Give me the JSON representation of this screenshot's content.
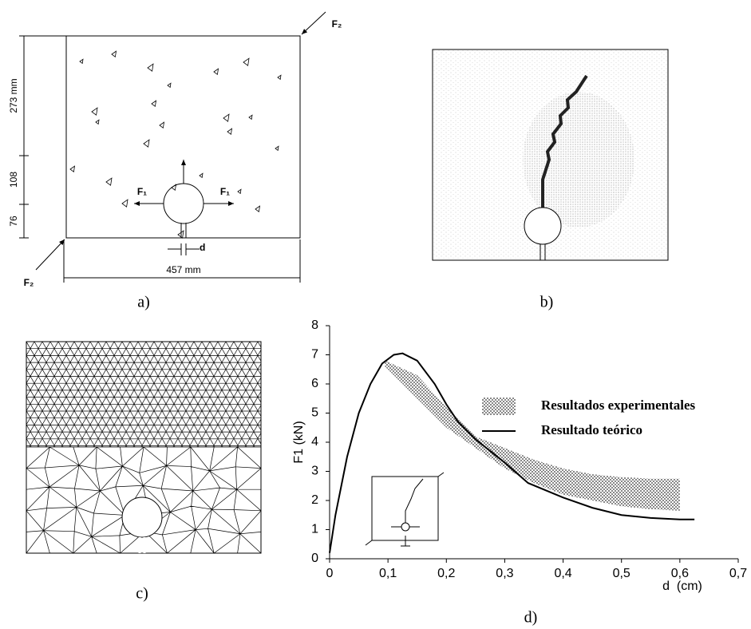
{
  "figure": {
    "panel_a": {
      "label": "a)",
      "dim_height_top": "273 mm",
      "dim_height_mid": "108",
      "dim_height_bottom": "76",
      "dim_width": "457 mm",
      "dim_notch": "d",
      "force_1": "F₁",
      "force_2": "F₂"
    },
    "panel_b": {
      "label": "b)"
    },
    "panel_c": {
      "label": "c)"
    }
  },
  "chart_data": {
    "type": "line",
    "panel_label": "d)",
    "xlabel": "d  (cm)",
    "ylabel": "F1 (kN)",
    "xlim": [
      0,
      0.7
    ],
    "ylim": [
      0,
      8
    ],
    "xticks": [
      0,
      {
        "value": 0.1,
        "label": "0,1"
      },
      {
        "value": 0.2,
        "label": "0,2"
      },
      {
        "value": 0.3,
        "label": "0,3"
      },
      {
        "value": 0.4,
        "label": "0,4"
      },
      {
        "value": 0.5,
        "label": "0,5"
      },
      {
        "value": 0.6,
        "label": "0,6"
      },
      {
        "value": 0.7,
        "label": "0,7"
      }
    ],
    "yticks": [
      0,
      1,
      2,
      3,
      4,
      5,
      6,
      7,
      8
    ],
    "series": [
      {
        "name": "Resultados experimentales",
        "kind": "band",
        "color": "#555555",
        "x": [
          0.095,
          0.15,
          0.2,
          0.25,
          0.3,
          0.35,
          0.4,
          0.45,
          0.5,
          0.55,
          0.6
        ],
        "upper": [
          6.8,
          6.3,
          5.2,
          4.2,
          3.8,
          3.4,
          3.1,
          2.9,
          2.8,
          2.75,
          2.75
        ],
        "lower": [
          6.6,
          5.5,
          4.5,
          3.8,
          3.1,
          2.6,
          2.2,
          2.0,
          1.8,
          1.7,
          1.65
        ]
      },
      {
        "name": "Resultado teórico",
        "kind": "line",
        "color": "#000000",
        "x": [
          0,
          0.01,
          0.03,
          0.05,
          0.07,
          0.09,
          0.11,
          0.125,
          0.15,
          0.18,
          0.2,
          0.22,
          0.25,
          0.3,
          0.34,
          0.4,
          0.45,
          0.5,
          0.55,
          0.6,
          0.625
        ],
        "values": [
          0.2,
          1.5,
          3.5,
          5.0,
          6.0,
          6.7,
          7.0,
          7.05,
          6.8,
          6.0,
          5.3,
          4.7,
          4.1,
          3.3,
          2.6,
          2.1,
          1.75,
          1.5,
          1.4,
          1.35,
          1.35
        ]
      }
    ]
  }
}
